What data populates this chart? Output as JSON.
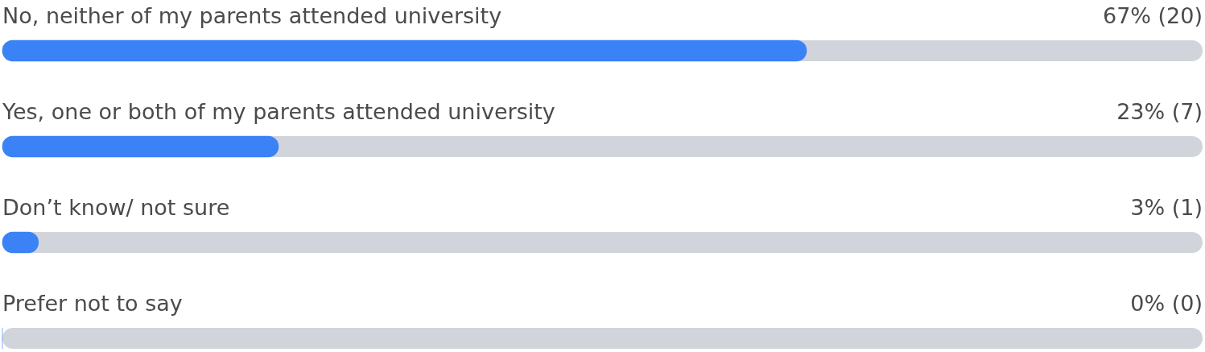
{
  "chart_data": {
    "type": "bar",
    "orientation": "horizontal",
    "categories": [
      "No, neither of my parents attended university",
      "Yes, one or both of my parents attended university",
      "Don’t know/ not sure",
      "Prefer not to say"
    ],
    "values": [
      67,
      23,
      3,
      0
    ],
    "value_labels": [
      "67% (20)",
      "23% (7)",
      "3% (1)",
      "0% (0)"
    ],
    "color": "#3b82f6",
    "xlim": [
      0,
      100
    ],
    "legend": false
  }
}
